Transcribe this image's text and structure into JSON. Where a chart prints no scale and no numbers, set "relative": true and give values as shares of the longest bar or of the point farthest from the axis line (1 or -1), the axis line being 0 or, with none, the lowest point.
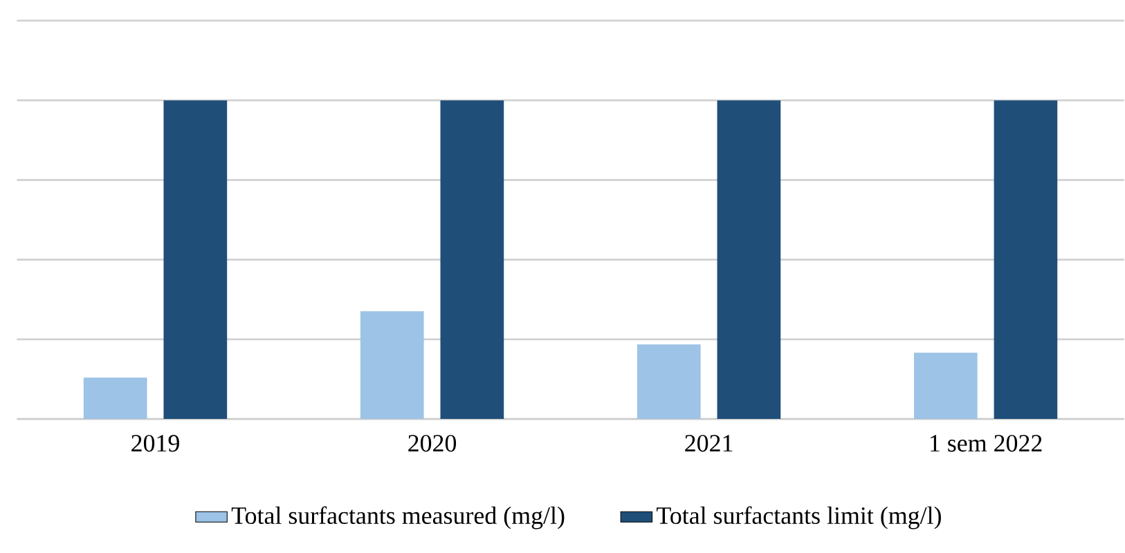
{
  "chart_data": {
    "type": "bar",
    "relative": true,
    "grid": "y",
    "legend": "bottom",
    "categories": [
      "2019",
      "2020",
      "2021",
      "1 sem 2022"
    ],
    "series": [
      {
        "name": "Total surfactants measured (mg/l)",
        "color": "#9dc3e6",
        "values": [
          0.13,
          0.338,
          0.234,
          0.208
        ]
      },
      {
        "name": "Total surfactants limit (mg/l)",
        "color": "#1f4e79",
        "values": [
          1,
          1,
          1,
          1
        ]
      }
    ]
  }
}
